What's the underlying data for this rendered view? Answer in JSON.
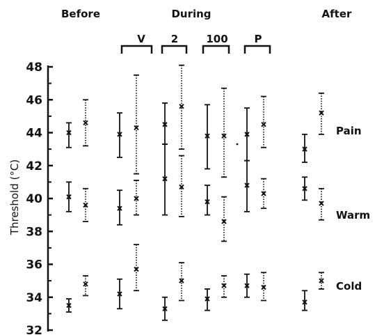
{
  "chart_data": {
    "type": "scatter",
    "ylabel": "Threshold (°C)",
    "ylim": [
      32,
      48
    ],
    "yticks": [
      32,
      34,
      36,
      38,
      40,
      42,
      44,
      46,
      48
    ],
    "period_labels": {
      "before": "Before",
      "during": "During",
      "after": "After"
    },
    "condition_labels": [
      "V",
      "2",
      "100",
      "P"
    ],
    "side_labels": [
      "Pain",
      "Warm",
      "Cold"
    ],
    "columns": [
      "Before",
      "V",
      "2",
      "100",
      "P",
      "After"
    ],
    "series": [
      {
        "name": "Pain",
        "points": [
          {
            "column": 0,
            "style": "solid",
            "mean": 44.0,
            "low": 43.1,
            "high": 44.6
          },
          {
            "column": 0,
            "style": "dotted",
            "mean": 44.6,
            "low": 43.2,
            "high": 46.0
          },
          {
            "column": 1,
            "style": "solid",
            "mean": 43.9,
            "low": 42.5,
            "high": 45.2
          },
          {
            "column": 1,
            "style": "dotted",
            "mean": 44.3,
            "low": 41.5,
            "high": 47.5
          },
          {
            "column": 2,
            "style": "solid",
            "mean": 44.5,
            "low": 43.3,
            "high": 45.8
          },
          {
            "column": 2,
            "style": "dotted",
            "mean": 45.6,
            "low": 43.0,
            "high": 48.1
          },
          {
            "column": 3,
            "style": "solid",
            "mean": 43.8,
            "low": 41.8,
            "high": 45.7
          },
          {
            "column": 3,
            "style": "dotted",
            "mean": 43.8,
            "low": 41.3,
            "high": 46.7
          },
          {
            "column": 4,
            "style": "solid",
            "mean": 43.9,
            "low": 42.3,
            "high": 45.5
          },
          {
            "column": 4,
            "style": "dotted",
            "mean": 44.5,
            "low": 43.1,
            "high": 46.2
          },
          {
            "column": 5,
            "style": "solid",
            "mean": 43.0,
            "low": 42.2,
            "high": 43.9
          },
          {
            "column": 5,
            "style": "dotted",
            "mean": 45.2,
            "low": 43.9,
            "high": 46.4
          }
        ]
      },
      {
        "name": "Warm",
        "points": [
          {
            "column": 0,
            "style": "solid",
            "mean": 40.1,
            "low": 39.2,
            "high": 41.0
          },
          {
            "column": 0,
            "style": "dotted",
            "mean": 39.6,
            "low": 38.6,
            "high": 40.6
          },
          {
            "column": 1,
            "style": "solid",
            "mean": 39.4,
            "low": 38.4,
            "high": 40.5
          },
          {
            "column": 1,
            "style": "dotted",
            "mean": 40.0,
            "low": 39.0,
            "high": 41.1
          },
          {
            "column": 2,
            "style": "solid",
            "mean": 41.2,
            "low": 39.0,
            "high": 43.3
          },
          {
            "column": 2,
            "style": "dotted",
            "mean": 40.7,
            "low": 38.9,
            "high": 42.6
          },
          {
            "column": 3,
            "style": "solid",
            "mean": 39.8,
            "low": 39.0,
            "high": 40.8
          },
          {
            "column": 3,
            "style": "dotted",
            "mean": 38.6,
            "low": 37.4,
            "high": 40.1
          },
          {
            "column": 4,
            "style": "solid",
            "mean": 40.8,
            "low": 39.2,
            "high": 42.3
          },
          {
            "column": 4,
            "style": "dotted",
            "mean": 40.3,
            "low": 39.4,
            "high": 41.2
          },
          {
            "column": 5,
            "style": "solid",
            "mean": 40.6,
            "low": 39.9,
            "high": 41.3
          },
          {
            "column": 5,
            "style": "dotted",
            "mean": 39.7,
            "low": 38.7,
            "high": 40.6
          }
        ]
      },
      {
        "name": "Cold",
        "points": [
          {
            "column": 0,
            "style": "solid",
            "mean": 33.5,
            "low": 33.1,
            "high": 33.9
          },
          {
            "column": 0,
            "style": "dotted",
            "mean": 34.8,
            "low": 34.1,
            "high": 35.3
          },
          {
            "column": 1,
            "style": "solid",
            "mean": 34.2,
            "low": 33.3,
            "high": 35.1
          },
          {
            "column": 1,
            "style": "dotted",
            "mean": 35.7,
            "low": 34.4,
            "high": 37.2
          },
          {
            "column": 2,
            "style": "solid",
            "mean": 33.3,
            "low": 32.6,
            "high": 34.0
          },
          {
            "column": 2,
            "style": "dotted",
            "mean": 35.0,
            "low": 33.8,
            "high": 36.1
          },
          {
            "column": 3,
            "style": "solid",
            "mean": 33.9,
            "low": 33.2,
            "high": 34.5
          },
          {
            "column": 3,
            "style": "dotted",
            "mean": 34.7,
            "low": 34.0,
            "high": 35.3
          },
          {
            "column": 4,
            "style": "solid",
            "mean": 34.7,
            "low": 34.0,
            "high": 35.4
          },
          {
            "column": 4,
            "style": "dotted",
            "mean": 34.6,
            "low": 33.8,
            "high": 35.5
          },
          {
            "column": 5,
            "style": "solid",
            "mean": 33.7,
            "low": 33.2,
            "high": 34.4
          },
          {
            "column": 5,
            "style": "dotted",
            "mean": 35.0,
            "low": 34.5,
            "high": 35.5
          }
        ]
      }
    ],
    "grid": false,
    "legend": "none"
  }
}
